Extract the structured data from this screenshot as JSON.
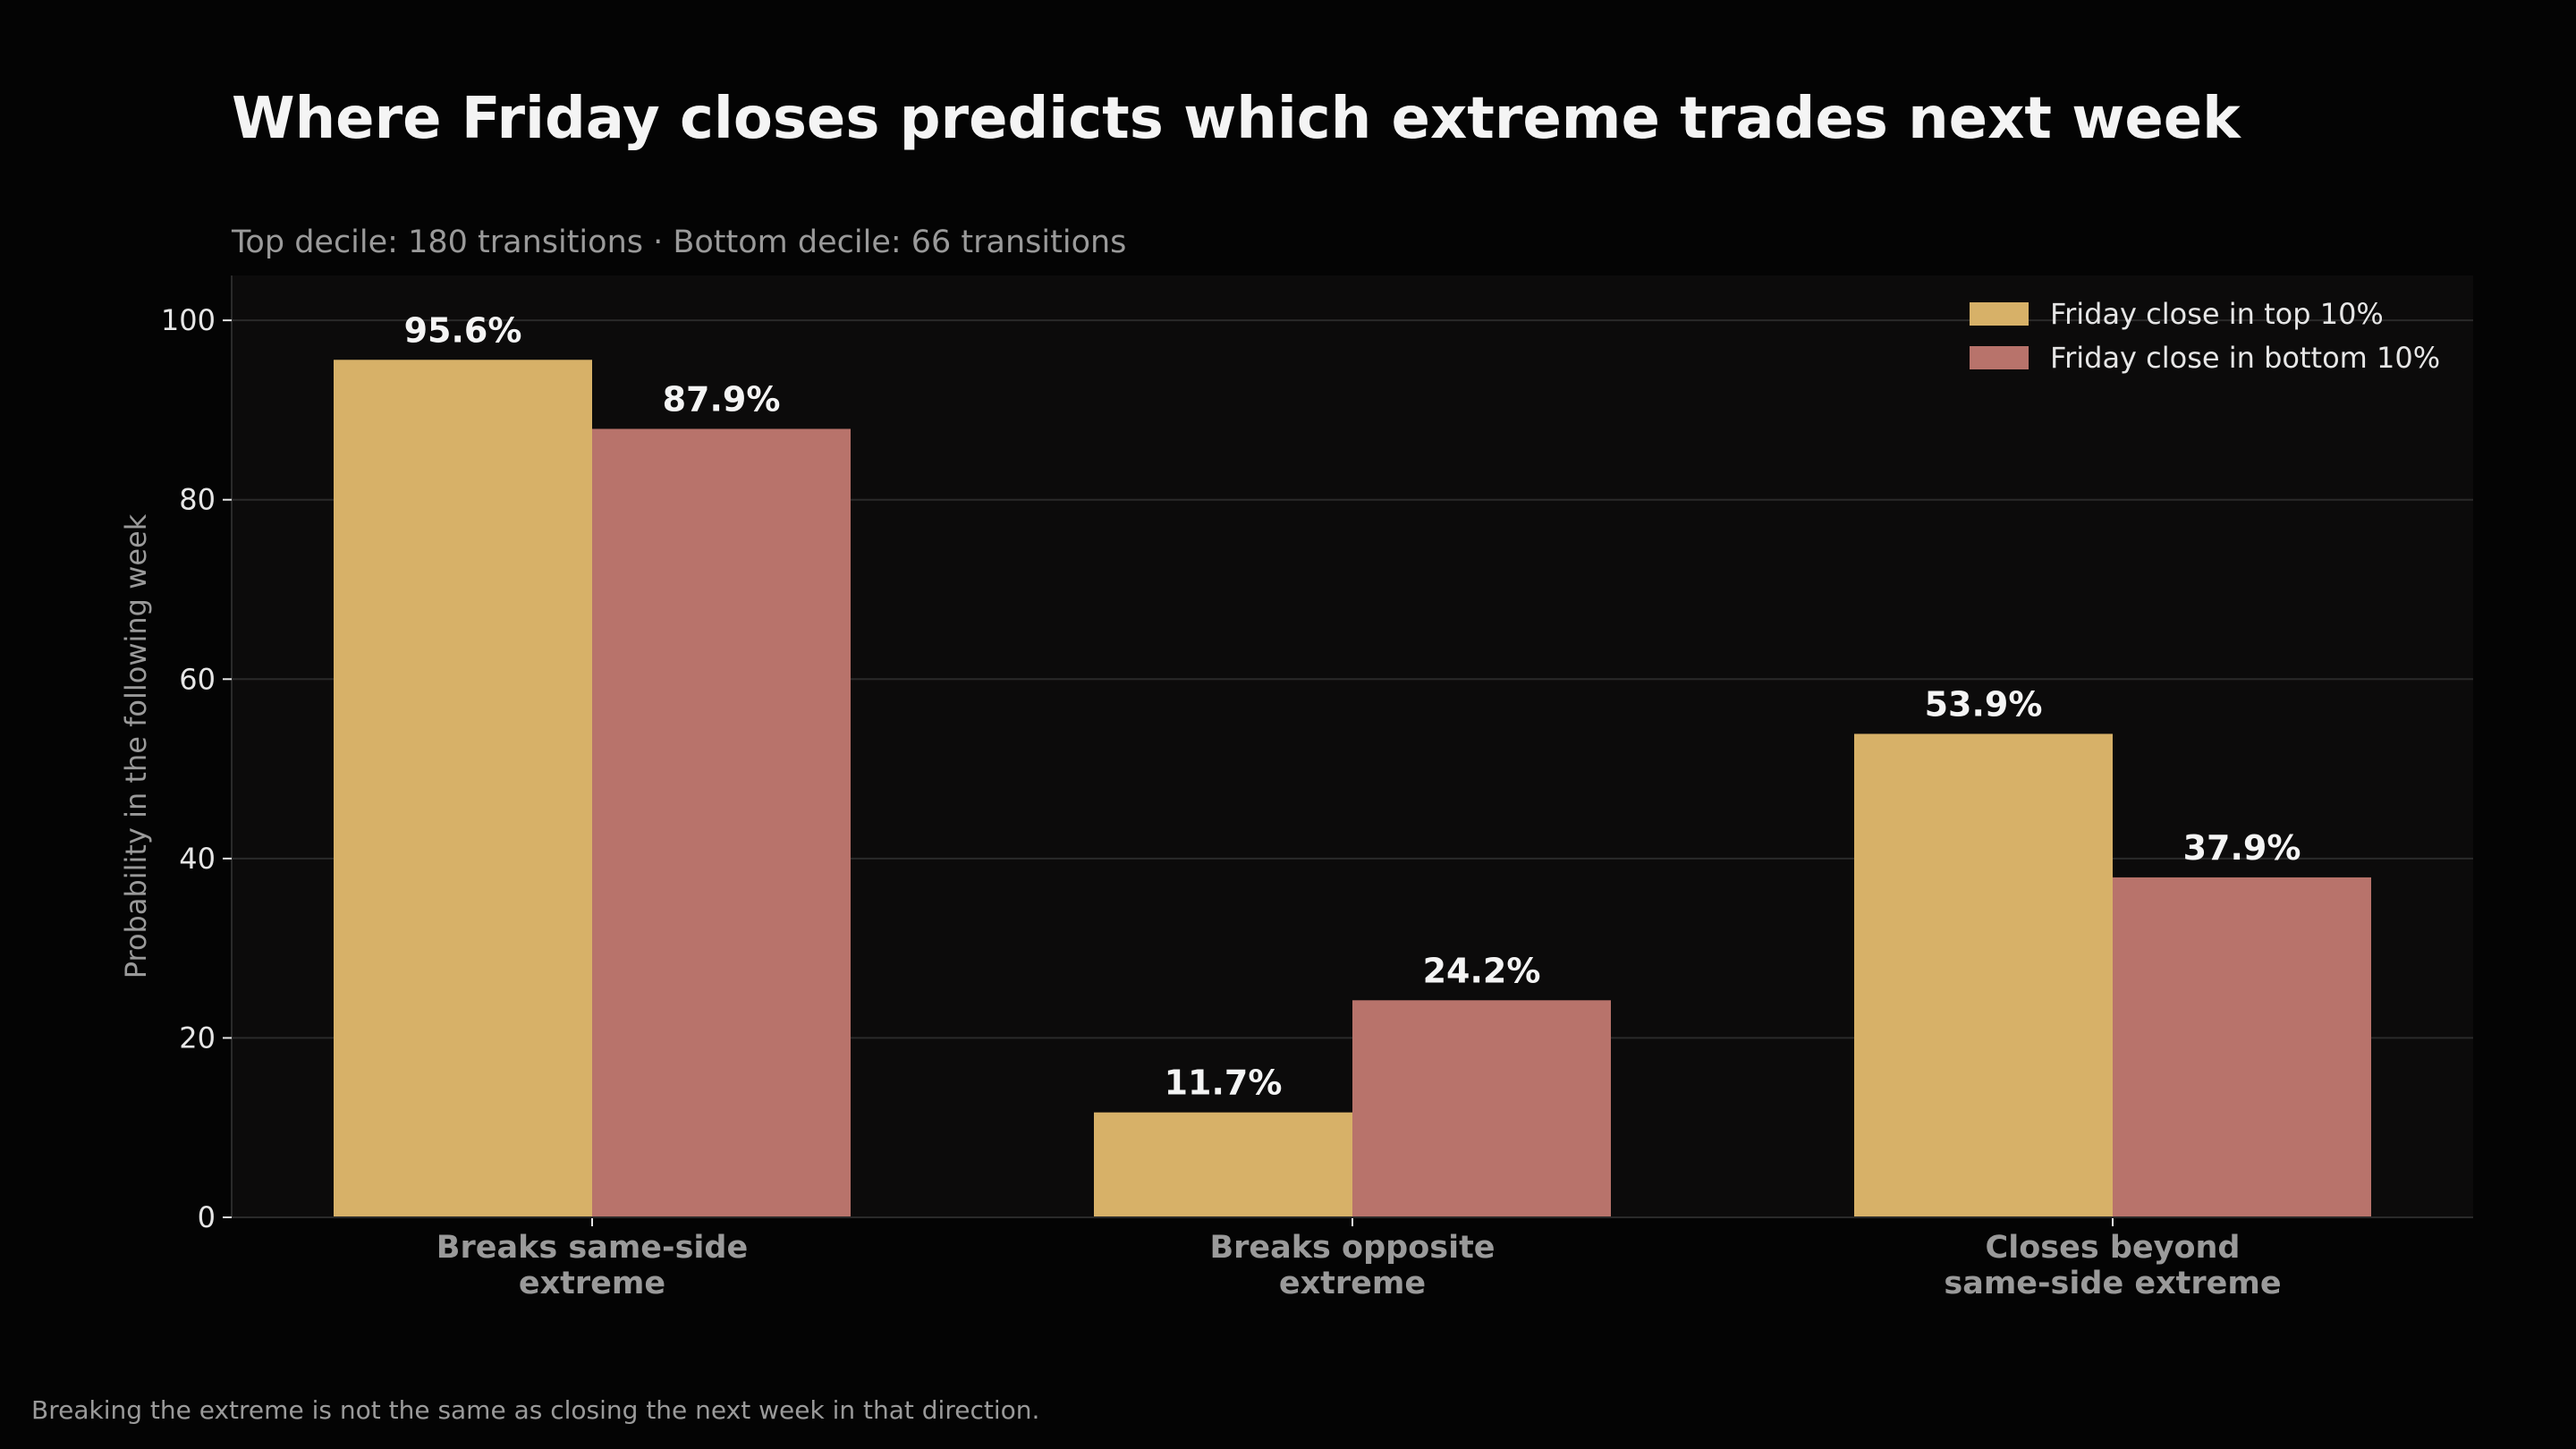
{
  "chart_data": {
    "type": "bar",
    "title": "Where Friday closes predicts which extreme trades next week",
    "subtitle": "Top decile: 180 transitions · Bottom decile: 66 transitions",
    "ylabel": "Probability in the following week",
    "xlabel": "",
    "ylim": [
      0,
      105
    ],
    "yticks": [
      0,
      20,
      40,
      60,
      80,
      100
    ],
    "grid": true,
    "legend_position": "top-right",
    "categories": [
      [
        "Breaks same-side",
        "extreme"
      ],
      [
        "Breaks opposite",
        "extreme"
      ],
      [
        "Closes beyond",
        "same-side extreme"
      ]
    ],
    "series": [
      {
        "name": "Friday close in top 10%",
        "color": "#d7b168",
        "values": [
          95.6,
          11.7,
          53.9
        ],
        "labels": [
          "95.6%",
          "11.7%",
          "53.9%"
        ]
      },
      {
        "name": "Friday close in bottom 10%",
        "color": "#b8736b",
        "values": [
          87.9,
          24.2,
          37.9
        ],
        "labels": [
          "87.9%",
          "24.2%",
          "37.9%"
        ]
      }
    ],
    "footnote": "Breaking the extreme is not the same as closing the next week in that direction."
  },
  "colors": {
    "page_background": "#040404",
    "plot_background": "#0c0b0b",
    "grid": "#2a2a2a",
    "title": "#f4f4f4",
    "muted_text": "#9a9a9a"
  }
}
